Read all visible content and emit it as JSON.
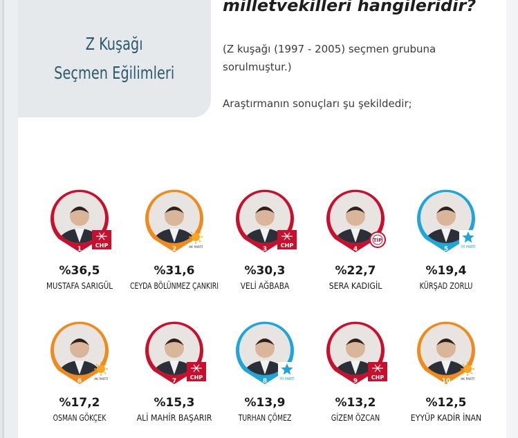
{
  "sidebar": {
    "title_line1": "Z Kuşağı",
    "title_line2": "Seçmen Eğilimleri"
  },
  "article": {
    "heading": "milletvekilleri hangileridir?",
    "note": "(Z kuşağı (1997 - 2005) seçmen grubuna sorulmuştur.)",
    "intro": "Araştırmanın sonuçları şu şekildedir;"
  },
  "colors": {
    "CHP": "#c8102e",
    "AKP": "#f08a1c",
    "TIP": "#c8102e",
    "IYI": "#1fa5d8",
    "accent": "#2d5a6b"
  },
  "chart_data": {
    "type": "bar",
    "value_format": "percent",
    "items": [
      {
        "rank": "1",
        "name": "MUSTAFA SARIGÜL",
        "value": 36.5,
        "label": "%36,5",
        "party": "CHP"
      },
      {
        "rank": "2",
        "name": "CEYDA BÖLÜNMEZ ÇANKIRI",
        "value": 31.6,
        "label": "%31,6",
        "party": "AKP",
        "party_text": "AK PARTİ"
      },
      {
        "rank": "3",
        "name": "VELİ AĞBABA",
        "value": 30.3,
        "label": "%30,3",
        "party": "CHP"
      },
      {
        "rank": "4",
        "name": "SERA KADIGİL",
        "value": 22.7,
        "label": "%22,7",
        "party": "TIP",
        "party_text": "TİP"
      },
      {
        "rank": "5",
        "name": "KÜRŞAD ZORLU",
        "value": 19.4,
        "label": "%19,4",
        "party": "IYI",
        "party_text": "İYİ PARTİ"
      },
      {
        "rank": "6",
        "name": "OSMAN GÖKÇEK",
        "value": 17.2,
        "label": "%17,2",
        "party": "AKP",
        "party_text": "AK PARTİ"
      },
      {
        "rank": "7",
        "name": "ALİ MAHİR BAŞARIR",
        "value": 15.3,
        "label": "%15,3",
        "party": "CHP"
      },
      {
        "rank": "8",
        "name": "TURHAN ÇÖMEZ",
        "value": 13.9,
        "label": "%13,9",
        "party": "IYI",
        "party_text": "İYİ PARTİ"
      },
      {
        "rank": "9",
        "name": "GİZEM ÖZCAN",
        "value": 13.2,
        "label": "%13,2",
        "party": "CHP"
      },
      {
        "rank": "10",
        "name": "EYYÜP KADİR İNAN",
        "value": 12.5,
        "label": "%12,5",
        "party": "AKP",
        "party_text": "AK PARTİ"
      }
    ]
  }
}
